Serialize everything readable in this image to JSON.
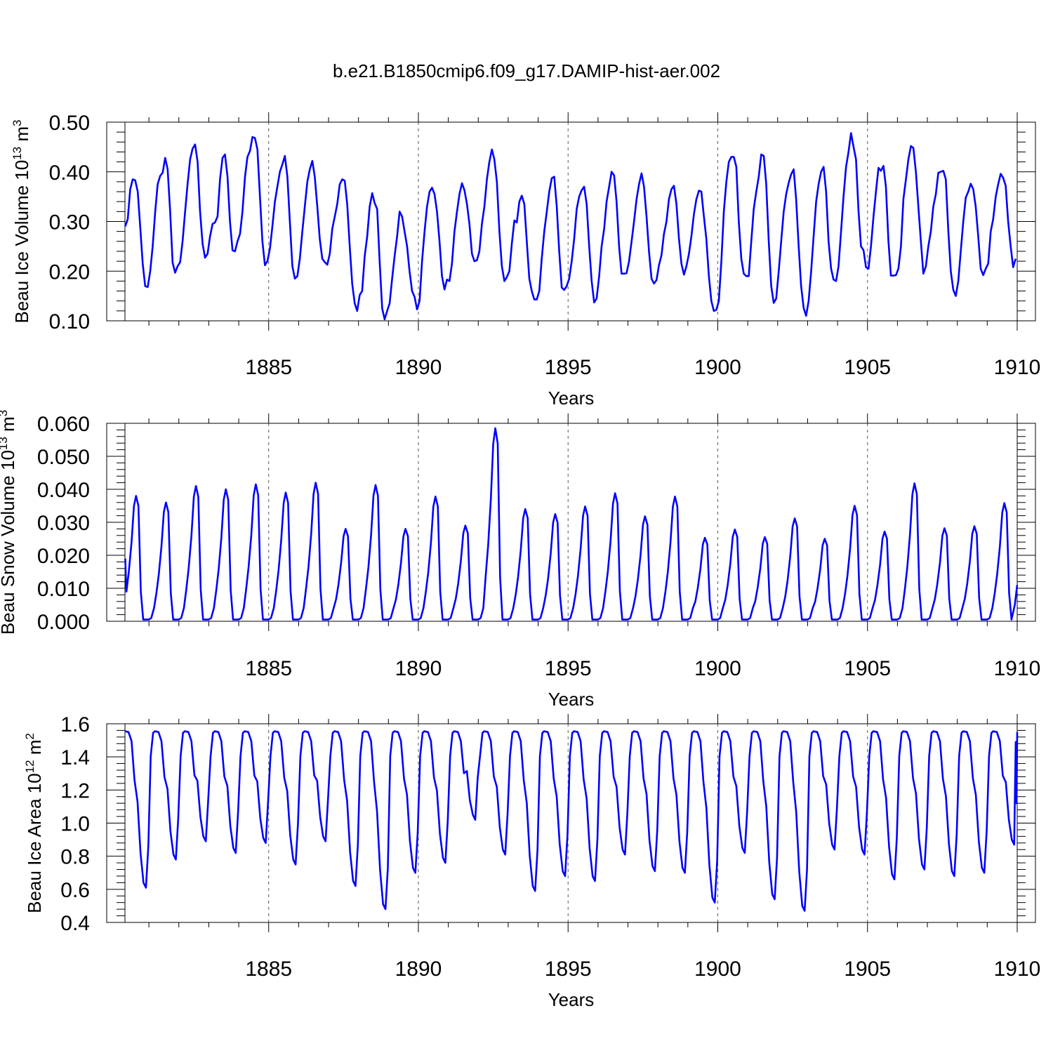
{
  "title": "b.e21.B1850cmip6.f09_g17.DAMIP-hist-aer.002",
  "colors": {
    "series": "#0000ff",
    "frame": "#000000",
    "grid": "#555555"
  },
  "chart_data": [
    {
      "type": "line",
      "title": "",
      "xlabel": "Years",
      "ylabel_main": "Beau Ice Volume 10",
      "ylabel_sup": "13",
      "ylabel_unit": " m",
      "ylabel_unit_sup": "3",
      "xlim": [
        1880.2,
        1910.0
      ],
      "ylim": [
        0.1,
        0.5
      ],
      "x_ticks": [
        1885,
        1890,
        1895,
        1900,
        1905,
        1910
      ],
      "x_tick_labels": [
        "1885",
        "1890",
        "1895",
        "1900",
        "1905",
        "1910"
      ],
      "y_ticks": [
        0.1,
        0.2,
        0.3,
        0.4,
        0.5
      ],
      "y_tick_labels": [
        "0.10",
        "0.20",
        "0.30",
        "0.40",
        "0.50"
      ],
      "grid": "vertical dashed at major x ticks",
      "x_start": 1880.21,
      "x_step": 0.0833,
      "series": [
        {
          "values": [
            0.29,
            0.305,
            0.365,
            0.385,
            0.383,
            0.36,
            0.29,
            0.215,
            0.17,
            0.168,
            0.2,
            0.25,
            0.32,
            0.375,
            0.392,
            0.398,
            0.428,
            0.405,
            0.32,
            0.217,
            0.197,
            0.21,
            0.218,
            0.26,
            0.32,
            0.375,
            0.425,
            0.447,
            0.455,
            0.42,
            0.32,
            0.255,
            0.227,
            0.235,
            0.27,
            0.295,
            0.298,
            0.31,
            0.385,
            0.428,
            0.435,
            0.39,
            0.3,
            0.242,
            0.24,
            0.26,
            0.275,
            0.32,
            0.39,
            0.43,
            0.442,
            0.47,
            0.468,
            0.445,
            0.35,
            0.26,
            0.212,
            0.22,
            0.245,
            0.29,
            0.34,
            0.37,
            0.4,
            0.415,
            0.432,
            0.39,
            0.3,
            0.21,
            0.185,
            0.19,
            0.225,
            0.28,
            0.33,
            0.38,
            0.405,
            0.422,
            0.39,
            0.33,
            0.265,
            0.225,
            0.218,
            0.213,
            0.235,
            0.285,
            0.31,
            0.335,
            0.375,
            0.385,
            0.382,
            0.335,
            0.25,
            0.175,
            0.135,
            0.12,
            0.152,
            0.16,
            0.23,
            0.27,
            0.33,
            0.357,
            0.337,
            0.325,
            0.22,
            0.125,
            0.103,
            0.12,
            0.135,
            0.185,
            0.23,
            0.27,
            0.32,
            0.31,
            0.28,
            0.25,
            0.2,
            0.16,
            0.148,
            0.123,
            0.14,
            0.22,
            0.28,
            0.33,
            0.36,
            0.368,
            0.355,
            0.32,
            0.26,
            0.19,
            0.163,
            0.183,
            0.18,
            0.215,
            0.28,
            0.32,
            0.355,
            0.377,
            0.363,
            0.335,
            0.295,
            0.235,
            0.22,
            0.222,
            0.24,
            0.295,
            0.33,
            0.385,
            0.42,
            0.445,
            0.425,
            0.38,
            0.28,
            0.21,
            0.18,
            0.188,
            0.2,
            0.255,
            0.302,
            0.298,
            0.34,
            0.352,
            0.335,
            0.26,
            0.185,
            0.16,
            0.143,
            0.143,
            0.16,
            0.225,
            0.28,
            0.32,
            0.36,
            0.387,
            0.39,
            0.33,
            0.24,
            0.167,
            0.162,
            0.17,
            0.185,
            0.22,
            0.265,
            0.325,
            0.35,
            0.363,
            0.37,
            0.335,
            0.25,
            0.18,
            0.137,
            0.145,
            0.19,
            0.25,
            0.285,
            0.34,
            0.37,
            0.4,
            0.393,
            0.34,
            0.25,
            0.195,
            0.195,
            0.196,
            0.22,
            0.26,
            0.3,
            0.345,
            0.375,
            0.397,
            0.37,
            0.31,
            0.24,
            0.185,
            0.175,
            0.182,
            0.212,
            0.232,
            0.275,
            0.3,
            0.345,
            0.365,
            0.372,
            0.335,
            0.265,
            0.215,
            0.193,
            0.21,
            0.235,
            0.27,
            0.315,
            0.345,
            0.362,
            0.36,
            0.31,
            0.265,
            0.19,
            0.14,
            0.12,
            0.122,
            0.14,
            0.22,
            0.32,
            0.38,
            0.42,
            0.43,
            0.43,
            0.41,
            0.3,
            0.225,
            0.195,
            0.19,
            0.19,
            0.26,
            0.325,
            0.36,
            0.39,
            0.435,
            0.432,
            0.375,
            0.26,
            0.17,
            0.136,
            0.145,
            0.2,
            0.26,
            0.32,
            0.355,
            0.378,
            0.395,
            0.405,
            0.345,
            0.25,
            0.17,
            0.126,
            0.11,
            0.14,
            0.2,
            0.27,
            0.34,
            0.375,
            0.4,
            0.41,
            0.36,
            0.26,
            0.205,
            0.183,
            0.18,
            0.21,
            0.28,
            0.35,
            0.41,
            0.44,
            0.478,
            0.45,
            0.425,
            0.32,
            0.25,
            0.242,
            0.208,
            0.205,
            0.25,
            0.31,
            0.36,
            0.408,
            0.402,
            0.412,
            0.37,
            0.26,
            0.191,
            0.191,
            0.192,
            0.205,
            0.25,
            0.345,
            0.385,
            0.425,
            0.452,
            0.448,
            0.4,
            0.33,
            0.26,
            0.195,
            0.21,
            0.25,
            0.28,
            0.33,
            0.355,
            0.398,
            0.4,
            0.402,
            0.385,
            0.28,
            0.2,
            0.162,
            0.15,
            0.18,
            0.24,
            0.3,
            0.348,
            0.36,
            0.376,
            0.365,
            0.33,
            0.27,
            0.205,
            0.192,
            0.205,
            0.215,
            0.28,
            0.305,
            0.35,
            0.375,
            0.396,
            0.388,
            0.372,
            0.3,
            0.25,
            0.208,
            0.225,
            0.26,
            0.318
          ]
        }
      ]
    },
    {
      "type": "line",
      "title": "",
      "xlabel": "Years",
      "ylabel_main": "Beau Snow Volume 10",
      "ylabel_sup": "13",
      "ylabel_unit": " m",
      "ylabel_unit_sup": "3",
      "xlim": [
        1880.2,
        1910.0
      ],
      "ylim": [
        0.0,
        0.06
      ],
      "x_ticks": [
        1885,
        1890,
        1895,
        1900,
        1905,
        1910
      ],
      "x_tick_labels": [
        "1885",
        "1890",
        "1895",
        "1900",
        "1905",
        "1910"
      ],
      "y_ticks": [
        0.0,
        0.01,
        0.02,
        0.03,
        0.04,
        0.05,
        0.06
      ],
      "y_tick_labels": [
        "0.000",
        "0.010",
        "0.020",
        "0.030",
        "0.040",
        "0.050",
        "0.060"
      ],
      "grid": "vertical dashed at major x ticks",
      "series": [
        {
          "peaks": [
            [
              1880.55,
              0.038
            ],
            [
              1881.55,
              0.036
            ],
            [
              1882.55,
              0.041
            ],
            [
              1883.55,
              0.04
            ],
            [
              1884.55,
              0.0415
            ],
            [
              1885.55,
              0.039
            ],
            [
              1886.55,
              0.042
            ],
            [
              1887.55,
              0.028
            ],
            [
              1888.55,
              0.0413
            ],
            [
              1889.55,
              0.028
            ],
            [
              1890.55,
              0.0378
            ],
            [
              1891.55,
              0.029
            ],
            [
              1892.55,
              0.0585
            ],
            [
              1893.55,
              0.034
            ],
            [
              1894.55,
              0.0325
            ],
            [
              1895.55,
              0.0348
            ],
            [
              1896.55,
              0.0388
            ],
            [
              1897.55,
              0.0318
            ],
            [
              1898.55,
              0.0378
            ],
            [
              1899.55,
              0.0253
            ],
            [
              1900.55,
              0.0278
            ],
            [
              1901.55,
              0.0255
            ],
            [
              1902.55,
              0.0312
            ],
            [
              1903.55,
              0.025
            ],
            [
              1904.55,
              0.035
            ],
            [
              1905.55,
              0.0272
            ],
            [
              1906.55,
              0.0418
            ],
            [
              1907.55,
              0.0282
            ],
            [
              1908.55,
              0.0288
            ],
            [
              1909.55,
              0.0358
            ]
          ],
          "x_end": 1910.0,
          "y_end": 0.011,
          "x_start": 1880.21,
          "y_start": 0.019
        }
      ]
    },
    {
      "type": "line",
      "title": "",
      "xlabel": "Years",
      "ylabel_main": "Beau Ice Area 10",
      "ylabel_sup": "12",
      "ylabel_unit": " m",
      "ylabel_unit_sup": "2",
      "xlim": [
        1880.2,
        1910.0
      ],
      "ylim": [
        0.4,
        1.6
      ],
      "x_ticks": [
        1885,
        1890,
        1895,
        1900,
        1905,
        1910
      ],
      "x_tick_labels": [
        "1885",
        "1890",
        "1895",
        "1900",
        "1905",
        "1910"
      ],
      "y_ticks": [
        0.4,
        0.6,
        0.8,
        1.0,
        1.2,
        1.4,
        1.6
      ],
      "y_tick_labels": [
        "0.4",
        "0.6",
        "0.8",
        "1.0",
        "1.2",
        "1.4",
        "1.6"
      ],
      "grid": "vertical dashed at major x ticks",
      "series": [
        {
          "plateau": 1.555,
          "minima": [
            [
              1880.9,
              0.61
            ],
            [
              1881.9,
              0.78
            ],
            [
              1882.9,
              0.89
            ],
            [
              1883.9,
              0.82
            ],
            [
              1884.9,
              0.88
            ],
            [
              1885.9,
              0.75
            ],
            [
              1886.9,
              0.89
            ],
            [
              1887.9,
              0.62
            ],
            [
              1888.9,
              0.48
            ],
            [
              1889.9,
              0.7
            ],
            [
              1890.9,
              0.76
            ],
            [
              1891.9,
              1.02
            ],
            [
              1892.9,
              0.81
            ],
            [
              1893.9,
              0.59
            ],
            [
              1894.9,
              0.68
            ],
            [
              1895.9,
              0.65
            ],
            [
              1896.9,
              0.81
            ],
            [
              1897.9,
              0.71
            ],
            [
              1898.9,
              0.7
            ],
            [
              1899.9,
              0.52
            ],
            [
              1900.9,
              0.82
            ],
            [
              1901.9,
              0.54
            ],
            [
              1902.9,
              0.47
            ],
            [
              1903.9,
              0.84
            ],
            [
              1904.9,
              0.81
            ],
            [
              1905.9,
              0.66
            ],
            [
              1906.9,
              0.72
            ],
            [
              1907.9,
              0.68
            ],
            [
              1908.9,
              0.7
            ],
            [
              1909.9,
              0.87
            ]
          ],
          "x_end": 1910.0,
          "y_end": 1.55
        }
      ]
    }
  ]
}
